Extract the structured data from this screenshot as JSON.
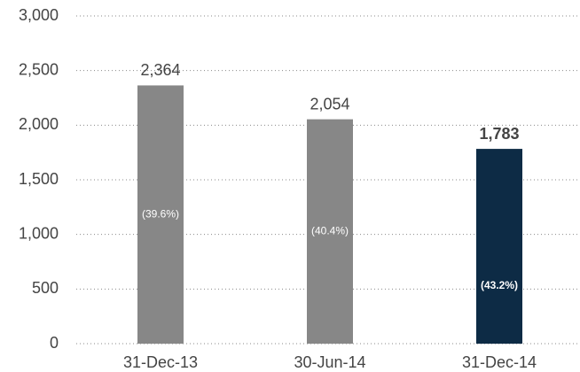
{
  "chart_data": {
    "type": "bar",
    "categories": [
      "31-Dec-13",
      "30-Jun-14",
      "31-Dec-14"
    ],
    "values": [
      2364,
      2054,
      1783
    ],
    "value_labels": [
      "2,364",
      "2,054",
      "1,783"
    ],
    "annotations": [
      "(39.6%)",
      "(40.4%)",
      "(43.2%)"
    ],
    "colors": [
      "#878787",
      "#878787",
      "#0d2b45"
    ],
    "bold_labels": [
      false,
      false,
      true
    ],
    "ylim": [
      0,
      3000
    ],
    "yticks": [
      0,
      500,
      {
        "value": 1000,
        "label": "1,000"
      },
      {
        "value": 1500,
        "label": "1,500"
      },
      {
        "value": 2000,
        "label": "2,000"
      },
      {
        "value": 2500,
        "label": "2,500"
      },
      {
        "value": 3000,
        "label": "3,000"
      }
    ],
    "grid": true
  }
}
